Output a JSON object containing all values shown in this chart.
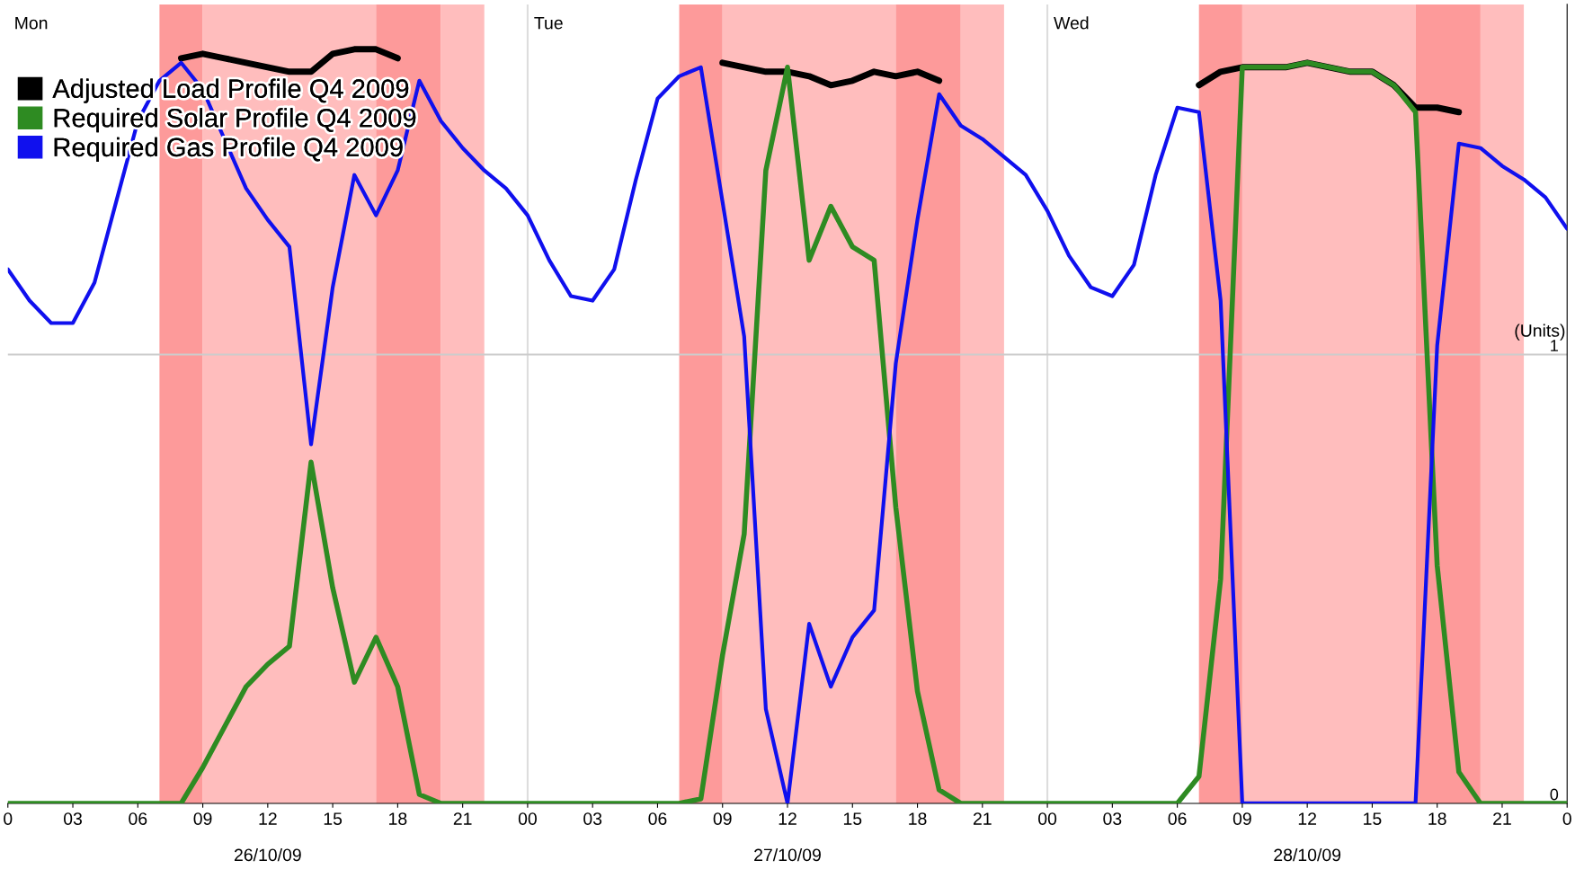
{
  "chart_data": {
    "type": "line",
    "ylabel": "(Units)",
    "x": [
      "2009-10-26T00:00",
      "2009-10-26T01:00",
      "2009-10-26T02:00",
      "2009-10-26T03:00",
      "2009-10-26T04:00",
      "2009-10-26T05:00",
      "2009-10-26T06:00",
      "2009-10-26T07:00",
      "2009-10-26T08:00",
      "2009-10-26T09:00",
      "2009-10-26T10:00",
      "2009-10-26T11:00",
      "2009-10-26T12:00",
      "2009-10-26T13:00",
      "2009-10-26T14:00",
      "2009-10-26T15:00",
      "2009-10-26T16:00",
      "2009-10-26T17:00",
      "2009-10-26T18:00",
      "2009-10-26T19:00",
      "2009-10-26T20:00",
      "2009-10-26T21:00",
      "2009-10-26T22:00",
      "2009-10-26T23:00",
      "2009-10-27T00:00",
      "2009-10-27T01:00",
      "2009-10-27T02:00",
      "2009-10-27T03:00",
      "2009-10-27T04:00",
      "2009-10-27T05:00",
      "2009-10-27T06:00",
      "2009-10-27T07:00",
      "2009-10-27T08:00",
      "2009-10-27T09:00",
      "2009-10-27T10:00",
      "2009-10-27T11:00",
      "2009-10-27T12:00",
      "2009-10-27T13:00",
      "2009-10-27T14:00",
      "2009-10-27T15:00",
      "2009-10-27T16:00",
      "2009-10-27T17:00",
      "2009-10-27T18:00",
      "2009-10-27T19:00",
      "2009-10-27T20:00",
      "2009-10-27T21:00",
      "2009-10-27T22:00",
      "2009-10-27T23:00",
      "2009-10-28T00:00",
      "2009-10-28T01:00",
      "2009-10-28T02:00",
      "2009-10-28T03:00",
      "2009-10-28T04:00",
      "2009-10-28T05:00",
      "2009-10-28T06:00",
      "2009-10-28T07:00",
      "2009-10-28T08:00",
      "2009-10-28T09:00",
      "2009-10-28T10:00",
      "2009-10-28T11:00",
      "2009-10-28T12:00",
      "2009-10-28T13:00",
      "2009-10-28T14:00",
      "2009-10-28T15:00",
      "2009-10-28T16:00",
      "2009-10-28T17:00",
      "2009-10-28T18:00",
      "2009-10-28T19:00",
      "2009-10-28T20:00",
      "2009-10-28T21:00",
      "2009-10-28T22:00",
      "2009-10-28T23:00",
      "2009-10-29T00:00"
    ],
    "series": [
      {
        "name": "Adjusted Load Profile Q4 2009",
        "color": "#000000",
        "values": [
          null,
          null,
          null,
          null,
          null,
          null,
          null,
          null,
          1.66,
          1.67,
          1.66,
          1.65,
          1.64,
          1.63,
          1.63,
          1.67,
          1.68,
          1.68,
          1.66,
          null,
          null,
          null,
          null,
          null,
          null,
          null,
          null,
          null,
          null,
          null,
          null,
          null,
          null,
          1.65,
          1.64,
          1.63,
          1.63,
          1.62,
          1.6,
          1.61,
          1.63,
          1.62,
          1.63,
          1.61,
          null,
          null,
          null,
          null,
          null,
          null,
          null,
          null,
          null,
          null,
          null,
          1.6,
          1.63,
          1.64,
          1.64,
          1.64,
          1.65,
          1.64,
          1.63,
          1.63,
          1.6,
          1.55,
          1.55,
          1.54,
          null,
          null,
          null,
          null,
          null
        ]
      },
      {
        "name": "Required Solar Profile Q4 2009",
        "color": "#2e8b22",
        "values": [
          0,
          0,
          0,
          0,
          0,
          0,
          0,
          0,
          0,
          0.08,
          0.17,
          0.26,
          0.31,
          0.35,
          0.76,
          0.48,
          0.27,
          0.37,
          0.26,
          0.02,
          0,
          0,
          0,
          0,
          0,
          0,
          0,
          0,
          0,
          0,
          0,
          0,
          0.01,
          0.33,
          0.6,
          1.41,
          1.64,
          1.21,
          1.33,
          1.24,
          1.21,
          0.66,
          0.25,
          0.03,
          0,
          0,
          0,
          0,
          0,
          0,
          0,
          0,
          0,
          0,
          0,
          0.06,
          0.5,
          1.64,
          1.64,
          1.64,
          1.65,
          1.64,
          1.63,
          1.63,
          1.6,
          1.54,
          0.53,
          0.07,
          0,
          0,
          0,
          0,
          0
        ]
      },
      {
        "name": "Required Gas Profile Q4 2009",
        "color": "#1010ee",
        "values": [
          1.19,
          1.12,
          1.07,
          1.07,
          1.16,
          1.34,
          1.52,
          1.61,
          1.65,
          1.59,
          1.48,
          1.37,
          1.3,
          1.24,
          0.8,
          1.15,
          1.4,
          1.31,
          1.41,
          1.61,
          1.52,
          1.46,
          1.41,
          1.37,
          1.31,
          1.21,
          1.13,
          1.12,
          1.19,
          1.39,
          1.57,
          1.62,
          1.64,
          1.34,
          1.04,
          0.21,
          0,
          0.4,
          0.26,
          0.37,
          0.43,
          0.98,
          1.3,
          1.58,
          1.51,
          1.48,
          1.44,
          1.4,
          1.32,
          1.22,
          1.15,
          1.13,
          1.2,
          1.4,
          1.55,
          1.54,
          1.12,
          0,
          0,
          0,
          0,
          0,
          0,
          0,
          0,
          0,
          1.02,
          1.47,
          1.46,
          1.42,
          1.39,
          1.35,
          1.28
        ]
      }
    ],
    "xlim": [
      "2009-10-26T00:00",
      "2009-10-29T00:00"
    ],
    "xticks": [
      {
        "value": "2009-10-26T00:00",
        "label": "0"
      },
      {
        "value": "2009-10-26T03:00",
        "label": "03"
      },
      {
        "value": "2009-10-26T06:00",
        "label": "06"
      },
      {
        "value": "2009-10-26T09:00",
        "label": "09"
      },
      {
        "value": "2009-10-26T12:00",
        "label": "12"
      },
      {
        "value": "2009-10-26T15:00",
        "label": "15"
      },
      {
        "value": "2009-10-26T18:00",
        "label": "18"
      },
      {
        "value": "2009-10-26T21:00",
        "label": "21"
      },
      {
        "value": "2009-10-27T00:00",
        "label": "00"
      },
      {
        "value": "2009-10-27T03:00",
        "label": "03"
      },
      {
        "value": "2009-10-27T06:00",
        "label": "06"
      },
      {
        "value": "2009-10-27T09:00",
        "label": "09"
      },
      {
        "value": "2009-10-27T12:00",
        "label": "12"
      },
      {
        "value": "2009-10-27T15:00",
        "label": "15"
      },
      {
        "value": "2009-10-27T18:00",
        "label": "18"
      },
      {
        "value": "2009-10-27T21:00",
        "label": "21"
      },
      {
        "value": "2009-10-28T00:00",
        "label": "00"
      },
      {
        "value": "2009-10-28T03:00",
        "label": "03"
      },
      {
        "value": "2009-10-28T06:00",
        "label": "06"
      },
      {
        "value": "2009-10-28T09:00",
        "label": "09"
      },
      {
        "value": "2009-10-28T12:00",
        "label": "12"
      },
      {
        "value": "2009-10-28T15:00",
        "label": "15"
      },
      {
        "value": "2009-10-28T18:00",
        "label": "18"
      },
      {
        "value": "2009-10-28T21:00",
        "label": "21"
      },
      {
        "value": "2009-10-29T00:00",
        "label": "0"
      }
    ],
    "ylim": [
      0,
      1.78
    ],
    "yticks": [
      0,
      1
    ],
    "legend": "top left",
    "marker": "none",
    "line_style": "solid",
    "ref_lines": [
      {
        "axis": "x",
        "value": "2009-10-27T00:00",
        "color": "#dddddd"
      },
      {
        "axis": "x",
        "value": "2009-10-28T00:00",
        "color": "#dddddd"
      },
      {
        "axis": "y",
        "value": 1,
        "color": "#cccccc"
      }
    ],
    "bands": [
      {
        "axis": "x",
        "from": "2009-10-26T07:00",
        "to": "2009-10-26T09:00",
        "color": "#fd9a9a"
      },
      {
        "axis": "x",
        "from": "2009-10-26T09:00",
        "to": "2009-10-26T17:00",
        "color": "#ffbdbd"
      },
      {
        "axis": "x",
        "from": "2009-10-26T17:00",
        "to": "2009-10-26T20:00",
        "color": "#fd9a9a"
      },
      {
        "axis": "x",
        "from": "2009-10-26T20:00",
        "to": "2009-10-26T22:00",
        "color": "#ffbdbd"
      },
      {
        "axis": "x",
        "from": "2009-10-27T07:00",
        "to": "2009-10-27T09:00",
        "color": "#fd9a9a"
      },
      {
        "axis": "x",
        "from": "2009-10-27T09:00",
        "to": "2009-10-27T17:00",
        "color": "#ffbdbd"
      },
      {
        "axis": "x",
        "from": "2009-10-27T17:00",
        "to": "2009-10-27T20:00",
        "color": "#fd9a9a"
      },
      {
        "axis": "x",
        "from": "2009-10-27T20:00",
        "to": "2009-10-27T22:00",
        "color": "#ffbdbd"
      },
      {
        "axis": "x",
        "from": "2009-10-28T07:00",
        "to": "2009-10-28T09:00",
        "color": "#fd9a9a"
      },
      {
        "axis": "x",
        "from": "2009-10-28T09:00",
        "to": "2009-10-28T17:00",
        "color": "#ffbdbd"
      },
      {
        "axis": "x",
        "from": "2009-10-28T17:00",
        "to": "2009-10-28T20:00",
        "color": "#fd9a9a"
      },
      {
        "axis": "x",
        "from": "2009-10-28T20:00",
        "to": "2009-10-28T22:00",
        "color": "#ffbdbd"
      }
    ],
    "annotations": [
      "Mon",
      "Tue",
      "Wed",
      "26/10/09",
      "27/10/09",
      "28/10/09"
    ]
  }
}
